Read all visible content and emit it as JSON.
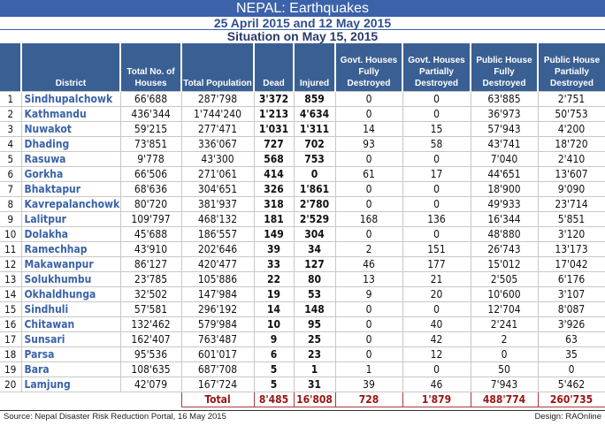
{
  "title": "NEPAL: Earthquakes",
  "subtitle": "25 April 2015 and 12 May 2015",
  "situation": "Situation on May 15, 2015",
  "headers": [
    "",
    "District",
    "Total No. of Houses",
    "Total Population",
    "Dead",
    "Injured",
    "Govt. Houses Fully Destroyed",
    "Govt. Houses Partially Destroyed",
    "Public House Fully Destroyed",
    "Public House Partially Destroyed"
  ],
  "rows": [
    [
      "1",
      "Sindhupalchowk",
      "66'688",
      "287'798",
      "3'372",
      "859",
      "0",
      "0",
      "63'885",
      "2'751"
    ],
    [
      "2",
      "Kathmandu",
      "436'344",
      "1'744'240",
      "1'213",
      "4'634",
      "0",
      "0",
      "36'973",
      "50'753"
    ],
    [
      "3",
      "Nuwakot",
      "59'215",
      "277'471",
      "1'031",
      "1'311",
      "14",
      "15",
      "57'943",
      "4'200"
    ],
    [
      "4",
      "Dhading",
      "73'851",
      "336'067",
      "727",
      "702",
      "93",
      "58",
      "43'741",
      "18'720"
    ],
    [
      "5",
      "Rasuwa",
      "9'778",
      "43'300",
      "568",
      "753",
      "0",
      "0",
      "7'040",
      "2'410"
    ],
    [
      "6",
      "Gorkha",
      "66'506",
      "271'061",
      "414",
      "0",
      "61",
      "17",
      "44'651",
      "13'607"
    ],
    [
      "7",
      "Bhaktapur",
      "68'636",
      "304'651",
      "326",
      "1'861",
      "0",
      "0",
      "18'900",
      "9'090"
    ],
    [
      "8",
      "Kavrepalanchowk",
      "80'720",
      "381'937",
      "318",
      "2'780",
      "0",
      "0",
      "49'933",
      "23'714"
    ],
    [
      "9",
      "Lalitpur",
      "109'797",
      "468'132",
      "181",
      "2'529",
      "168",
      "136",
      "16'344",
      "5'851"
    ],
    [
      "10",
      "Dolakha",
      "45'688",
      "186'557",
      "149",
      "304",
      "0",
      "0",
      "48'880",
      "3'120"
    ],
    [
      "11",
      "Ramechhap",
      "43'910",
      "202'646",
      "39",
      "34",
      "2",
      "151",
      "26'743",
      "13'173"
    ],
    [
      "12",
      "Makawanpur",
      "86'127",
      "420'477",
      "33",
      "127",
      "46",
      "177",
      "15'012",
      "17'042"
    ],
    [
      "13",
      "Solukhumbu",
      "23'785",
      "105'886",
      "22",
      "80",
      "13",
      "21",
      "2'505",
      "6'176"
    ],
    [
      "14",
      "Okhaldhunga",
      "32'502",
      "147'984",
      "19",
      "53",
      "9",
      "20",
      "10'600",
      "3'107"
    ],
    [
      "15",
      "Sindhuli",
      "57'581",
      "296'192",
      "14",
      "148",
      "0",
      "0",
      "12'704",
      "8'087"
    ],
    [
      "16",
      "Chitawan",
      "132'462",
      "579'984",
      "10",
      "95",
      "0",
      "40",
      "2'241",
      "3'926"
    ],
    [
      "17",
      "Sunsari",
      "162'407",
      "763'487",
      "9",
      "25",
      "0",
      "42",
      "2",
      "63"
    ],
    [
      "18",
      "Parsa",
      "95'536",
      "601'017",
      "6",
      "23",
      "0",
      "12",
      "0",
      "35"
    ],
    [
      "19",
      "Bara",
      "108'635",
      "687'708",
      "5",
      "1",
      "1",
      "0",
      "50",
      "0"
    ],
    [
      "20",
      "Lamjung",
      "42'079",
      "167'724",
      "5",
      "31",
      "39",
      "46",
      "7'943",
      "5'462"
    ]
  ],
  "total": {
    "label": "Total",
    "values": [
      "8'485",
      "16'808",
      "728",
      "1'879",
      "488'774",
      "260'735"
    ]
  },
  "source": "Source:  Nepal Disaster Risk Reduction Portal, 16 May 2015",
  "design": "Design: RAOnline"
}
